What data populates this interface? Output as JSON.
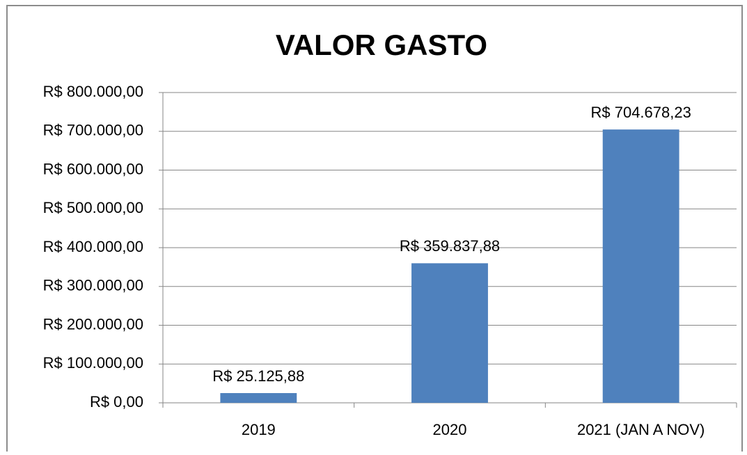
{
  "chart_data": {
    "type": "bar",
    "title": "VALOR GASTO",
    "categories": [
      "2019",
      "2020",
      "2021 (JAN A NOV)"
    ],
    "values": [
      25125.88,
      359837.88,
      704678.23
    ],
    "value_labels": [
      "R$ 25.125,88",
      "R$ 359.837,88",
      "R$ 704.678,23"
    ],
    "color": "#4f81bd",
    "ylim": [
      0,
      800000
    ],
    "yticks": [
      {
        "value": 0,
        "label": "R$ 0,00"
      },
      {
        "value": 100000,
        "label": "R$ 100.000,00"
      },
      {
        "value": 200000,
        "label": "R$ 200.000,00"
      },
      {
        "value": 300000,
        "label": "R$ 300.000,00"
      },
      {
        "value": 400000,
        "label": "R$ 400.000,00"
      },
      {
        "value": 500000,
        "label": "R$ 500.000,00"
      },
      {
        "value": 600000,
        "label": "R$ 600.000,00"
      },
      {
        "value": 700000,
        "label": "R$ 700.000,00"
      },
      {
        "value": 800000,
        "label": "R$ 800.000,00"
      }
    ],
    "grid": true
  }
}
